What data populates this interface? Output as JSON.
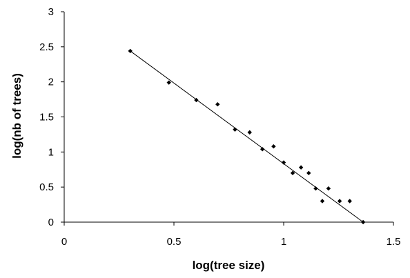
{
  "chart_data": {
    "type": "scatter",
    "title": "",
    "xlabel": "log(tree size)",
    "ylabel": "log(nb of trees)",
    "xlim": [
      0,
      1.5
    ],
    "ylim": [
      0,
      3
    ],
    "x_ticks": [
      0,
      0.5,
      1,
      1.5
    ],
    "x_tick_labels": [
      "0",
      "0.5",
      "1",
      "1.5"
    ],
    "y_ticks": [
      0,
      0.5,
      1,
      1.5,
      2,
      2.5,
      3
    ],
    "y_tick_labels": [
      "0",
      "0.5",
      "1",
      "1.5",
      "2",
      "2.5",
      "3"
    ],
    "grid": false,
    "legend": false,
    "marker": "diamond",
    "marker_color": "#000000",
    "series": [
      {
        "x": [
          0.301,
          0.477,
          0.602,
          0.699,
          0.778,
          0.845,
          0.903,
          0.954,
          1.0,
          1.041,
          1.079,
          1.114,
          1.146,
          1.176,
          1.204,
          1.255,
          1.301,
          1.362
        ],
        "y": [
          2.44,
          1.99,
          1.74,
          1.68,
          1.32,
          1.28,
          1.04,
          1.08,
          0.85,
          0.7,
          0.78,
          0.7,
          0.48,
          0.3,
          0.48,
          0.3,
          0.3,
          0.0
        ]
      }
    ],
    "trendline": {
      "type": "linear",
      "x": [
        0.301,
        1.362
      ],
      "y": [
        2.44,
        0.0
      ],
      "color": "#000000"
    }
  }
}
